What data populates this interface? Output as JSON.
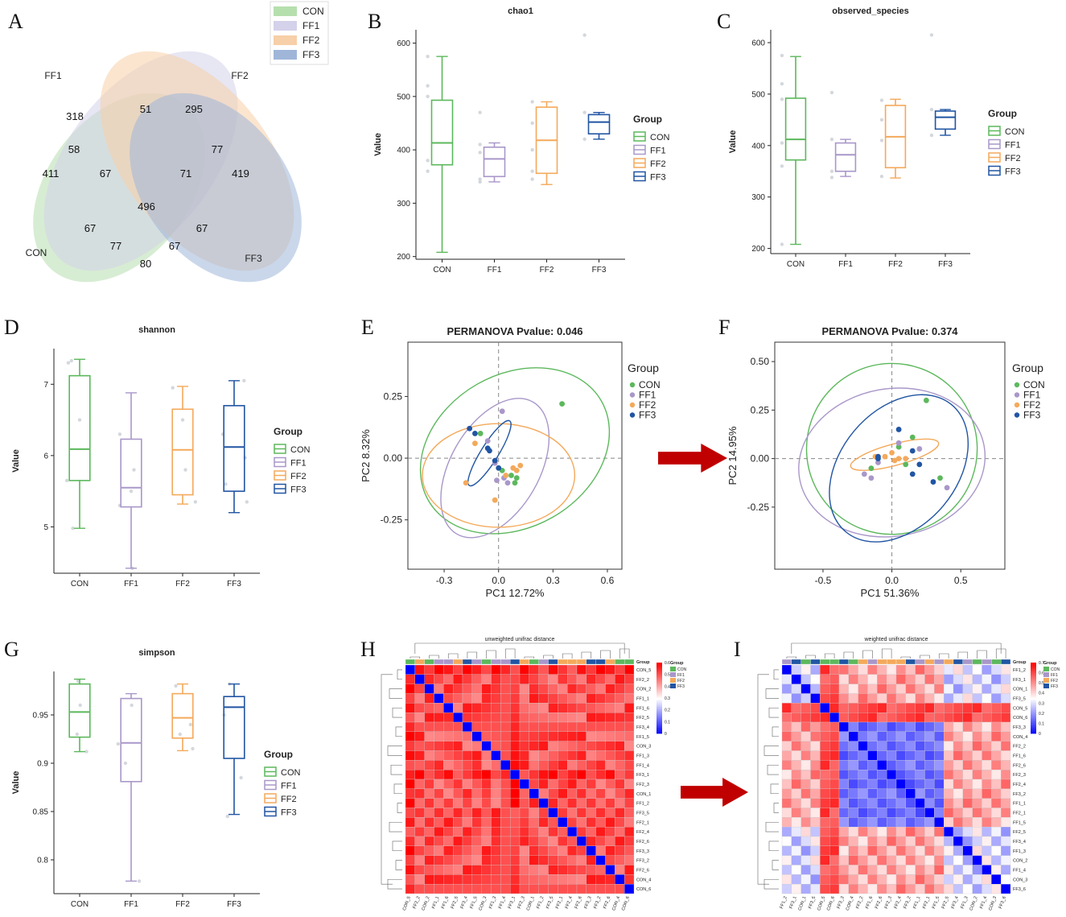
{
  "colors": {
    "CON": "#5cb85c",
    "FF1": "#a997c9",
    "FF2": "#f4a95b",
    "FF3": "#2155a3"
  },
  "panel_letters": [
    "A",
    "B",
    "C",
    "D",
    "E",
    "F",
    "G",
    "H",
    "I"
  ],
  "chart_data": [
    {
      "panel": "A",
      "type": "venn",
      "sets": [
        "CON",
        "FF1",
        "FF2",
        "FF3"
      ],
      "legend": [
        "CON",
        "FF1",
        "FF2",
        "FF3"
      ],
      "set_labels": {
        "FF1": "FF1",
        "FF2": "FF2",
        "CON": "CON",
        "FF3": "FF3"
      },
      "regions": {
        "FF1_only": "318",
        "FF2_only": "295",
        "CON_only": "411",
        "FF3_only": "419",
        "FF1_FF2": "51",
        "CON_FF1": "58",
        "FF2_FF3": "77",
        "CON_FF1_FF2": "67",
        "FF1_FF2_FF3": "71",
        "all": "496",
        "CON_FF2": "67",
        "FF1_FF3": "67",
        "CON_FF2_FF3": "77",
        "CON_FF1_FF3": "67",
        "CON_FF3": "80"
      }
    },
    {
      "panel": "B",
      "type": "boxplot",
      "title": "chao1",
      "ylabel": "Value",
      "ylim": [
        195,
        625
      ],
      "yticks": [
        200,
        300,
        400,
        500,
        600
      ],
      "categories": [
        "CON",
        "FF1",
        "FF2",
        "FF3"
      ],
      "legend_title": "Group",
      "boxes": [
        {
          "group": "CON",
          "min": 208,
          "q1": 372,
          "median": 413,
          "q3": 493,
          "max": 575
        },
        {
          "group": "FF1",
          "min": 340,
          "q1": 350,
          "median": 383,
          "q3": 405,
          "max": 413
        },
        {
          "group": "FF2",
          "min": 335,
          "q1": 356,
          "median": 418,
          "q3": 480,
          "max": 490
        },
        {
          "group": "FF3",
          "min": 420,
          "q1": 430,
          "median": 452,
          "q3": 466,
          "max": 470
        }
      ],
      "points": [
        [
          0,
          575
        ],
        [
          0,
          520
        ],
        [
          0,
          500
        ],
        [
          0,
          380
        ],
        [
          0,
          360
        ],
        [
          1,
          410
        ],
        [
          1,
          395
        ],
        [
          1,
          345
        ],
        [
          1,
          340
        ],
        [
          1,
          470
        ],
        [
          2,
          490
        ],
        [
          2,
          450
        ],
        [
          2,
          400
        ],
        [
          2,
          360
        ],
        [
          2,
          345
        ],
        [
          3,
          615
        ],
        [
          3,
          470
        ],
        [
          3,
          420
        ]
      ]
    },
    {
      "panel": "C",
      "type": "boxplot",
      "title": "observed_species",
      "ylabel": "Value",
      "ylim": [
        190,
        625
      ],
      "yticks": [
        200,
        300,
        400,
        500,
        600
      ],
      "categories": [
        "CON",
        "FF1",
        "FF2",
        "FF3"
      ],
      "legend_title": "Group",
      "boxes": [
        {
          "group": "CON",
          "min": 208,
          "q1": 372,
          "median": 412,
          "q3": 492,
          "max": 573
        },
        {
          "group": "FF1",
          "min": 340,
          "q1": 350,
          "median": 382,
          "q3": 405,
          "max": 412
        },
        {
          "group": "FF2",
          "min": 337,
          "q1": 357,
          "median": 417,
          "q3": 478,
          "max": 490
        },
        {
          "group": "FF3",
          "min": 420,
          "q1": 432,
          "median": 455,
          "q3": 467,
          "max": 470
        }
      ],
      "points": [
        [
          0,
          575
        ],
        [
          0,
          520
        ],
        [
          0,
          490
        ],
        [
          0,
          405
        ],
        [
          0,
          360
        ],
        [
          0,
          208
        ],
        [
          1,
          503
        ],
        [
          1,
          412
        ],
        [
          1,
          350
        ],
        [
          1,
          338
        ],
        [
          2,
          488
        ],
        [
          2,
          450
        ],
        [
          2,
          410
        ],
        [
          2,
          340
        ],
        [
          3,
          615
        ],
        [
          3,
          470
        ],
        [
          3,
          420
        ]
      ]
    },
    {
      "panel": "D",
      "type": "boxplot",
      "title": "shannon",
      "ylabel": "Value",
      "ylim": [
        4.35,
        7.5
      ],
      "yticks": [
        5,
        6,
        7
      ],
      "categories": [
        "CON",
        "FF1",
        "FF2",
        "FF3"
      ],
      "legend_title": "Group",
      "boxes": [
        {
          "group": "CON",
          "min": 4.98,
          "q1": 5.65,
          "median": 6.09,
          "q3": 7.12,
          "max": 7.35
        },
        {
          "group": "FF1",
          "min": 4.42,
          "q1": 5.28,
          "median": 5.55,
          "q3": 6.23,
          "max": 6.88
        },
        {
          "group": "FF2",
          "min": 5.32,
          "q1": 5.45,
          "median": 6.08,
          "q3": 6.65,
          "max": 6.97
        },
        {
          "group": "FF3",
          "min": 5.2,
          "q1": 5.5,
          "median": 6.12,
          "q3": 6.7,
          "max": 7.05
        }
      ],
      "points": [
        [
          0,
          7.33
        ],
        [
          0,
          7.3
        ],
        [
          0,
          6.5
        ],
        [
          0,
          5.65
        ],
        [
          0,
          4.98
        ],
        [
          1,
          6.3
        ],
        [
          1,
          5.8
        ],
        [
          1,
          5.5
        ],
        [
          1,
          5.3
        ],
        [
          1,
          4.42
        ],
        [
          2,
          6.95
        ],
        [
          2,
          6.5
        ],
        [
          2,
          5.8
        ],
        [
          2,
          5.35
        ],
        [
          3,
          7.05
        ],
        [
          3,
          6.3
        ],
        [
          3,
          5.6
        ],
        [
          3,
          5.35
        ],
        [
          3,
          5.97
        ]
      ]
    },
    {
      "panel": "E",
      "type": "scatter",
      "title": "PERMANOVA Pvalue: 0.046",
      "xlabel": "PC1 12.72%",
      "ylabel": "PC2 8.32%",
      "xlim": [
        -0.5,
        0.68
      ],
      "ylim": [
        -0.45,
        0.47
      ],
      "xticks": [
        -0.3,
        0.0,
        0.3,
        0.6
      ],
      "yticks": [
        -0.25,
        0.0,
        0.25
      ],
      "legend_title": "Group",
      "legend": [
        "CON",
        "FF1",
        "FF2",
        "FF3"
      ],
      "points": {
        "CON": [
          [
            0.35,
            0.22
          ],
          [
            -0.1,
            0.1
          ],
          [
            0.02,
            -0.05
          ],
          [
            0.07,
            -0.07
          ],
          [
            0.09,
            -0.1
          ],
          [
            0.1,
            -0.08
          ]
        ],
        "FF1": [
          [
            0.02,
            0.19
          ],
          [
            -0.06,
            0.07
          ],
          [
            -0.02,
            -0.02
          ],
          [
            0.03,
            -0.08
          ],
          [
            -0.01,
            -0.09
          ],
          [
            0.05,
            -0.1
          ]
        ],
        "FF2": [
          [
            -0.18,
            -0.1
          ],
          [
            -0.02,
            -0.17
          ],
          [
            -0.13,
            0.06
          ],
          [
            0.08,
            -0.04
          ],
          [
            0.04,
            -0.07
          ],
          [
            0.12,
            -0.03
          ],
          [
            0.1,
            -0.05
          ]
        ],
        "FF3": [
          [
            -0.16,
            0.12
          ],
          [
            -0.13,
            0.1
          ],
          [
            -0.06,
            0.04
          ],
          [
            -0.02,
            -0.01
          ],
          [
            0.0,
            -0.04
          ],
          [
            -0.05,
            0.03
          ]
        ]
      },
      "ellipses": {
        "CON": {
          "cx": 0.09,
          "cy": 0.03,
          "rx": 0.55,
          "ry": 0.31,
          "angle": -30
        },
        "FF1": {
          "cx": -0.02,
          "cy": -0.04,
          "rx": 0.42,
          "ry": 0.18,
          "angle": -60
        },
        "FF2": {
          "cx": 0.0,
          "cy": -0.07,
          "rx": 0.42,
          "ry": 0.21,
          "angle": 0
        },
        "FF3": {
          "cx": -0.05,
          "cy": 0.02,
          "rx": 0.21,
          "ry": 0.035,
          "angle": -58
        }
      }
    },
    {
      "panel": "F",
      "type": "scatter",
      "title": "PERMANOVA Pvalue: 0.374",
      "xlabel": "PC1 51.36%",
      "ylabel": "PC2 14.95%",
      "xlim": [
        -0.85,
        0.82
      ],
      "ylim": [
        -0.57,
        0.6
      ],
      "xticks": [
        -0.5,
        0.0,
        0.5
      ],
      "yticks": [
        -0.25,
        0.0,
        0.25,
        0.5
      ],
      "legend_title": "Group",
      "legend": [
        "CON",
        "FF1",
        "FF2",
        "FF3"
      ],
      "points": {
        "CON": [
          [
            0.25,
            0.3
          ],
          [
            0.15,
            0.11
          ],
          [
            0.35,
            -0.1
          ],
          [
            0.05,
            0.06
          ],
          [
            -0.15,
            -0.05
          ],
          [
            0.1,
            -0.03
          ]
        ],
        "FF1": [
          [
            -0.1,
            -0.02
          ],
          [
            -0.2,
            -0.08
          ],
          [
            -0.15,
            -0.1
          ],
          [
            0.4,
            -0.15
          ],
          [
            0.05,
            0.08
          ],
          [
            0.2,
            0.05
          ]
        ],
        "FF2": [
          [
            0.0,
            0.03
          ],
          [
            0.05,
            0.0
          ],
          [
            0.1,
            0.0
          ],
          [
            -0.05,
            0.01
          ],
          [
            -0.12,
            0.01
          ],
          [
            0.02,
            -0.01
          ]
        ],
        "FF3": [
          [
            -0.1,
            0.0
          ],
          [
            0.2,
            -0.03
          ],
          [
            0.3,
            -0.12
          ],
          [
            0.15,
            -0.08
          ],
          [
            0.05,
            0.15
          ],
          [
            0.15,
            0.04
          ],
          [
            -0.1,
            0.01
          ]
        ]
      },
      "ellipses": {
        "CON": {
          "cx": 0.0,
          "cy": 0.05,
          "rx": 0.62,
          "ry": 0.44,
          "angle": -70
        },
        "FF1": {
          "cx": 0.0,
          "cy": -0.02,
          "rx": 0.68,
          "ry": 0.38,
          "angle": -10
        },
        "FF2": {
          "cx": 0.02,
          "cy": 0.02,
          "rx": 0.33,
          "ry": 0.055,
          "angle": -15
        },
        "FF3": {
          "cx": 0.05,
          "cy": -0.05,
          "rx": 0.6,
          "ry": 0.3,
          "angle": -50
        }
      }
    },
    {
      "panel": "G",
      "type": "boxplot",
      "title": "simpson",
      "ylabel": "Value",
      "ylim": [
        0.765,
        0.995
      ],
      "yticks": [
        0.8,
        0.85,
        0.9,
        0.95
      ],
      "categories": [
        "CON",
        "FF1",
        "FF2",
        "FF3"
      ],
      "legend_title": "Group",
      "boxes": [
        {
          "group": "CON",
          "min": 0.912,
          "q1": 0.927,
          "median": 0.953,
          "q3": 0.982,
          "max": 0.987
        },
        {
          "group": "FF1",
          "min": 0.778,
          "q1": 0.881,
          "median": 0.921,
          "q3": 0.967,
          "max": 0.972
        },
        {
          "group": "FF2",
          "min": 0.913,
          "q1": 0.926,
          "median": 0.947,
          "q3": 0.972,
          "max": 0.982
        },
        {
          "group": "FF3",
          "min": 0.847,
          "q1": 0.905,
          "median": 0.958,
          "q3": 0.969,
          "max": 0.982
        }
      ],
      "points": [
        [
          0,
          0.985
        ],
        [
          0,
          0.96
        ],
        [
          0,
          0.93
        ],
        [
          0,
          0.912
        ],
        [
          1,
          0.96
        ],
        [
          1,
          0.92
        ],
        [
          1,
          0.9
        ],
        [
          1,
          0.778
        ],
        [
          2,
          0.98
        ],
        [
          2,
          0.94
        ],
        [
          2,
          0.93
        ],
        [
          2,
          0.915
        ],
        [
          3,
          0.982
        ],
        [
          3,
          0.95
        ],
        [
          3,
          0.885
        ],
        [
          3,
          0.845
        ]
      ]
    },
    {
      "panel": "H",
      "type": "heatmap",
      "title": "unweighted unifrac distance",
      "labels": [
        "CON_5",
        "FF2_2",
        "CON_2",
        "FF1_1",
        "FF1_6",
        "FF2_5",
        "FF3_4",
        "FF1_5",
        "CON_3",
        "FF1_3",
        "FF1_4",
        "FF3_1",
        "FF2_3",
        "CON_1",
        "FF1_2",
        "FF3_5",
        "FF2_1",
        "FF2_4",
        "FF2_6",
        "FF3_3",
        "FF3_2",
        "FF2_6",
        "CON_4",
        "CON_6"
      ],
      "groups": [
        "CON",
        "FF2",
        "CON",
        "FF1",
        "FF1",
        "FF2",
        "FF3",
        "FF1",
        "CON",
        "FF1",
        "FF1",
        "FF3",
        "FF2",
        "CON",
        "FF1",
        "FF3",
        "FF2",
        "FF2",
        "FF2",
        "FF3",
        "FF3",
        "FF2",
        "CON",
        "CON"
      ],
      "scale_min": 0.0,
      "scale_max": 0.6,
      "scale_ticks": [
        "0.6",
        "0.5",
        "0.4",
        "0.3",
        "0.2",
        "0.1",
        "0"
      ],
      "scale": [
        "#0000ff",
        "#ffffff",
        "#ff0000"
      ],
      "group_legend_title": "Group",
      "group_legend": [
        "CON",
        "FF1",
        "FF2",
        "FF3"
      ]
    },
    {
      "panel": "I",
      "type": "heatmap",
      "title": "weighted unifrac distance",
      "labels": [
        "FF1_2",
        "FF3_1",
        "CON_1",
        "FF3_5",
        "CON_5",
        "CON_6",
        "FF3_3",
        "CON_4",
        "FF2_2",
        "FF1_6",
        "FF2_6",
        "FF2_3",
        "FF2_4",
        "FF3_2",
        "FF1_1",
        "FF2_1",
        "FF1_5",
        "FF2_5",
        "FF3_4",
        "FF1_3",
        "CON_2",
        "FF1_4",
        "CON_3",
        "FF3_6"
      ],
      "groups": [
        "FF1",
        "FF3",
        "CON",
        "FF3",
        "CON",
        "CON",
        "FF3",
        "CON",
        "FF2",
        "FF1",
        "FF2",
        "FF2",
        "FF2",
        "FF3",
        "FF1",
        "FF2",
        "FF1",
        "FF2",
        "FF3",
        "FF1",
        "CON",
        "FF1",
        "CON",
        "FF3"
      ],
      "scale_min": 0.0,
      "scale_max": 0.7,
      "scale_ticks": [
        "0.7",
        "0.6",
        "0.5",
        "0.4",
        "0.3",
        "0.2",
        "0.1",
        "0"
      ],
      "scale": [
        "#0000ff",
        "#ffffff",
        "#ff0000"
      ],
      "group_legend_title": "Group",
      "group_legend": [
        "CON",
        "FF1",
        "FF2",
        "FF3"
      ]
    }
  ]
}
